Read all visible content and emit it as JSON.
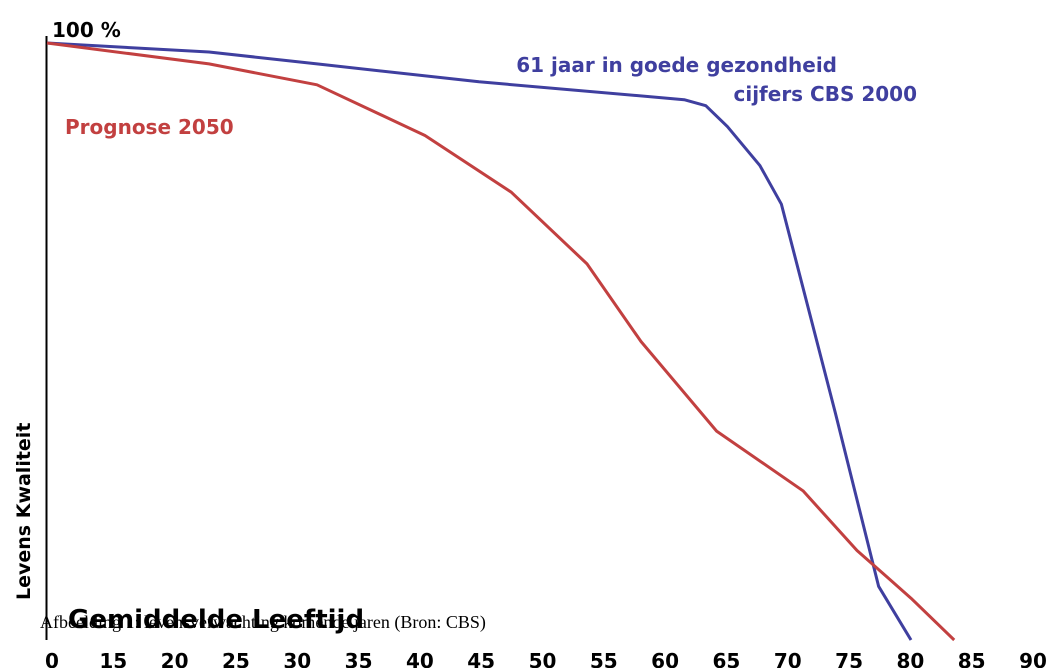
{
  "chart_data": {
    "type": "line",
    "top_label": "100 %",
    "ylabel": "Levens Kwaliteit",
    "xlabel": "Gemiddelde Leeftijd",
    "caption": "Afbeelding 1: levensverwachting komende jaren  (Bron: CBS)",
    "x_ticks": [
      "0",
      "15",
      "20",
      "25",
      "30",
      "35",
      "40",
      "45",
      "50",
      "55",
      "60",
      "65",
      "70",
      "75",
      "80",
      "85",
      "90"
    ],
    "series": [
      {
        "name": "61 jaar in goede gezondheid",
        "label_lines": [
          "61 jaar in goede gezondheid",
          "cijfers CBS 2000"
        ],
        "color": "#3f3f9f",
        "points": [
          [
            0,
            100
          ],
          [
            15,
            98.5
          ],
          [
            25,
            96.5
          ],
          [
            40,
            93.5
          ],
          [
            59,
            90.5
          ],
          [
            61,
            89.5
          ],
          [
            63,
            86
          ],
          [
            66,
            79.5
          ],
          [
            68,
            73
          ],
          [
            73,
            38
          ],
          [
            77,
            9
          ],
          [
            80,
            0
          ]
        ]
      },
      {
        "name": "Prognose 2050",
        "label_lines": [
          "Prognose 2050"
        ],
        "color": "#c24040",
        "points": [
          [
            0,
            100
          ],
          [
            15,
            96.5
          ],
          [
            25,
            93
          ],
          [
            35,
            84.5
          ],
          [
            43,
            75
          ],
          [
            50,
            63
          ],
          [
            55,
            50
          ],
          [
            62,
            35
          ],
          [
            70,
            25
          ],
          [
            75,
            15
          ],
          [
            80,
            7
          ],
          [
            84,
            0
          ]
        ]
      }
    ],
    "grid": false,
    "legend": "none"
  }
}
